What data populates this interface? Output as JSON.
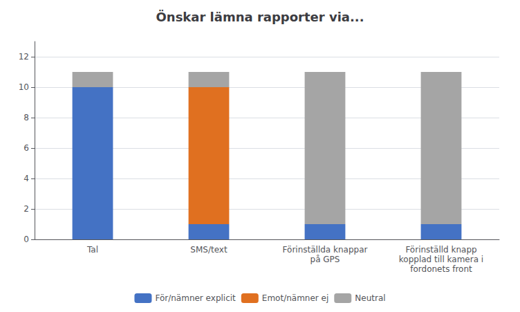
{
  "chart_data": {
    "type": "bar",
    "title": "Önskar lämna rapporter via...",
    "categories": [
      "Tal",
      "SMS/text",
      "Förinställda knappar\npå GPS",
      "Förinställd knapp\nkopplad till kamera i\nfordonets front"
    ],
    "series": [
      {
        "name": "För/nämner explicit",
        "color": "#4472C4",
        "values": [
          10,
          1,
          1,
          1
        ]
      },
      {
        "name": "Emot/nämner ej",
        "color": "#E07020",
        "values": [
          0,
          9,
          0,
          0
        ]
      },
      {
        "name": "Neutral",
        "color": "#A5A5A5",
        "values": [
          1,
          1,
          10,
          10
        ]
      }
    ],
    "stacked": true,
    "ylim": [
      0,
      13
    ],
    "yticks": [
      0,
      2,
      4,
      6,
      8,
      10,
      12
    ],
    "grid": true,
    "legend": "bottom"
  }
}
